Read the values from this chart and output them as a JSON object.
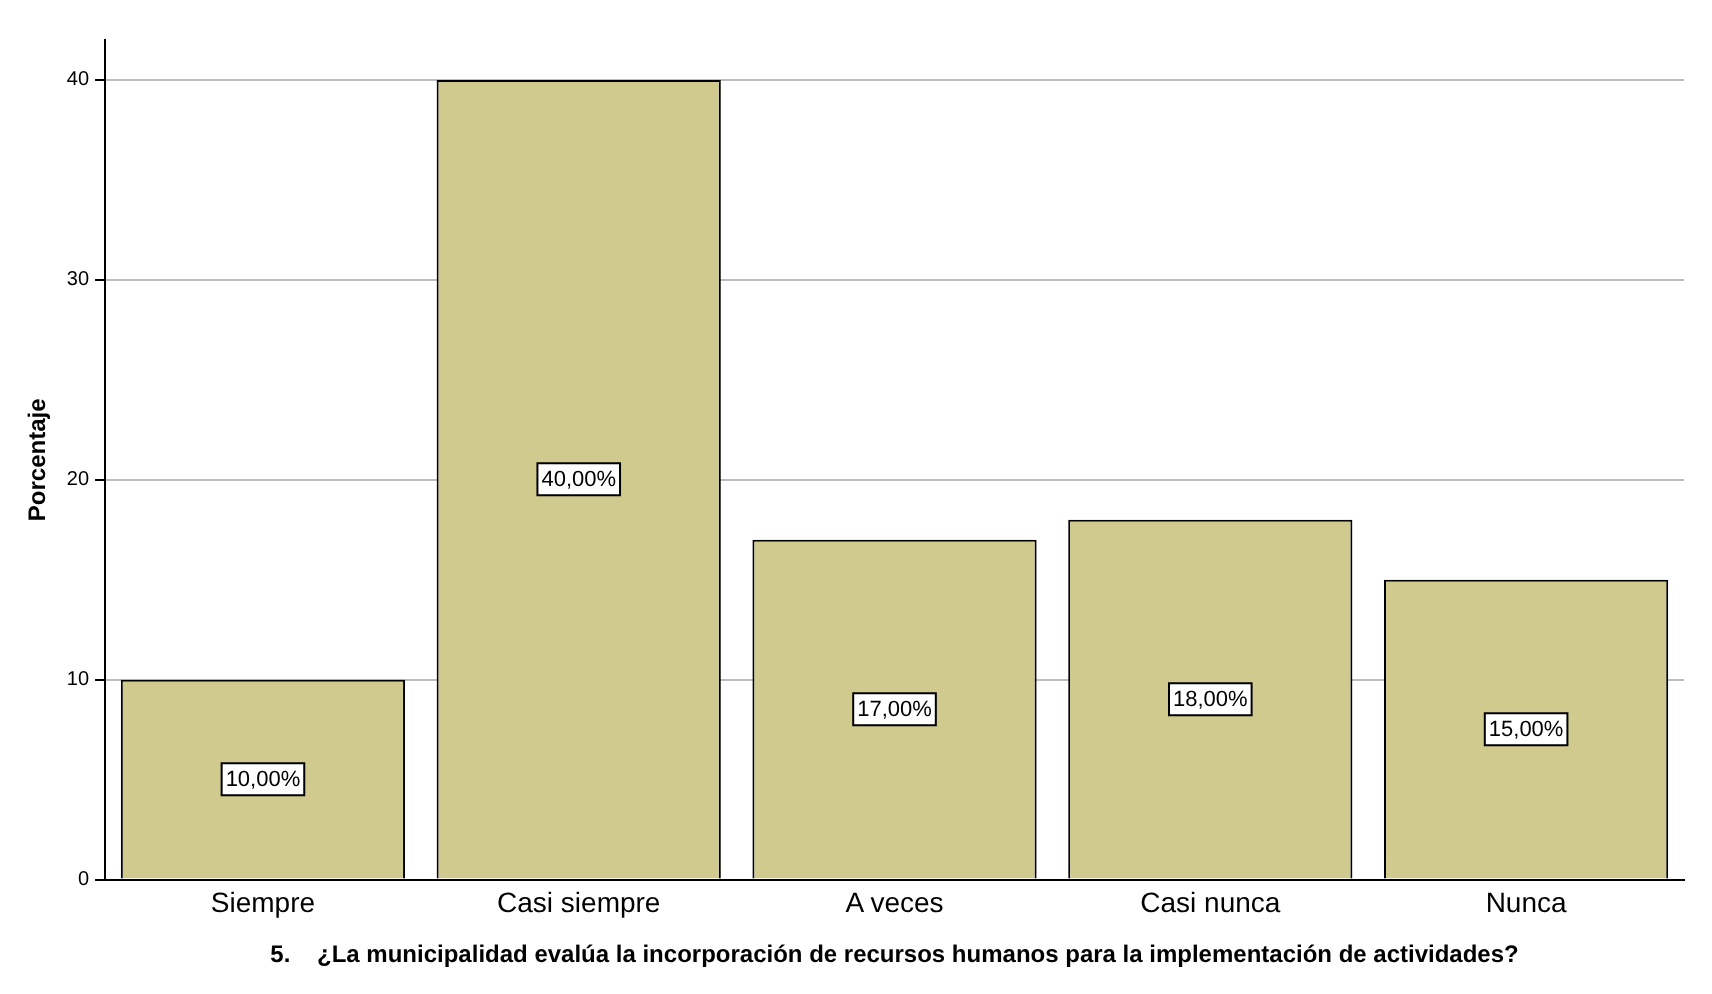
{
  "chart_data": {
    "type": "bar",
    "xlabel": "5.    ¿La municipalidad evalúa la incorporación de recursos humanos para la implementación de actividades?",
    "ylabel": "Porcentaje",
    "categories": [
      "Siempre",
      "Casi siempre",
      "A veces",
      "Casi nunca",
      "Nunca"
    ],
    "values": [
      10,
      40,
      17,
      18,
      15
    ],
    "color": "#d0ca8e",
    "value_labels": [
      "10,00%",
      "40,00%",
      "17,00%",
      "18,00%",
      "15,00%"
    ],
    "ylim": [
      0,
      42
    ],
    "yticks": [
      0,
      10,
      20,
      30,
      40
    ],
    "grid": "y",
    "legend": false
  }
}
